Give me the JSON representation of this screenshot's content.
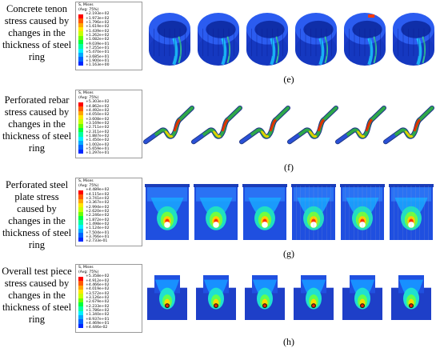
{
  "figure": {
    "panels": [
      {
        "id": "e",
        "caption_lines": [
          "Concrete tenon",
          "stress caused by",
          "changes in the",
          "thickness of steel",
          "ring"
        ],
        "label": "(e)",
        "legend": {
          "title": "S, Mises",
          "subtitle": "(Avg: 75%)",
          "values": [
            "+2.193e+02",
            "+1.973e+02",
            "+1.796e+02",
            "+1.619e+02",
            "+1.439e+02",
            "+1.262e+02",
            "+1.082e+02",
            "+9.039e+01",
            "+7.255e+01",
            "+5.470e+01",
            "+3.685e+01",
            "+1.900e+01",
            "+1.163e+00"
          ]
        },
        "shape": "ring",
        "count": 6
      },
      {
        "id": "f",
        "caption_lines": [
          "Perforated rebar",
          "stress caused by",
          "changes in the",
          "thickness of steel",
          "ring"
        ],
        "label": "(f)",
        "legend": {
          "title": "S, Mises",
          "subtitle": "(Avg: 75%)",
          "values": [
            "+5.303e+02",
            "+4.862e+02",
            "+4.492e+02",
            "+4.050e+02",
            "+3.608e+02",
            "+3.169e+02",
            "+2.711e+02",
            "+2.311e+02",
            "+1.887e+02",
            "+1.450e+02",
            "+1.002e+02",
            "+5.659e+01",
            "+1.297e+01"
          ]
        },
        "shape": "rebar",
        "count": 6
      },
      {
        "id": "g",
        "caption_lines": [
          "Perforated steel",
          "plate stress",
          "caused by",
          "changes in the",
          "thickness of steel",
          "ring"
        ],
        "label": "(g)",
        "legend": {
          "title": "S, Mises",
          "subtitle": "(Avg: 75%)",
          "values": [
            "+4.489e+02",
            "+4.115e+02",
            "+3.741e+02",
            "+3.367e+02",
            "+2.994e+02",
            "+2.620e+02",
            "+2.246e+02",
            "+1.872e+02",
            "+1.498e+02",
            "+1.124e+02",
            "+7.504e+01",
            "+3.766e+01",
            "+2.733e-01"
          ]
        },
        "shape": "plate",
        "count": 6
      },
      {
        "id": "h",
        "caption_lines": [
          "Overall test piece",
          "stress caused by",
          "changes in the",
          "thickness of steel",
          "ring"
        ],
        "label": "(h)",
        "legend": {
          "title": "S, Mises",
          "subtitle": "(Avg: 75%)",
          "values": [
            "+5.358e+02",
            "+4.912e+02",
            "+4.466e+02",
            "+4.019e+02",
            "+3.572e+02",
            "+3.126e+02",
            "+2.679e+02",
            "+2.233e+02",
            "+1.786e+02",
            "+1.340e+02",
            "+8.937e+01",
            "+4.469e+01",
            "+4.446e-02"
          ]
        },
        "shape": "specimen",
        "count": 6
      }
    ],
    "contour_colors": [
      "#ff0000",
      "#ff5a00",
      "#ffa500",
      "#ffe600",
      "#c8ff00",
      "#6cff00",
      "#00ff3c",
      "#00ffa0",
      "#00f0ff",
      "#00a8ff",
      "#0064ff",
      "#0028ff",
      "#0000e0"
    ]
  }
}
